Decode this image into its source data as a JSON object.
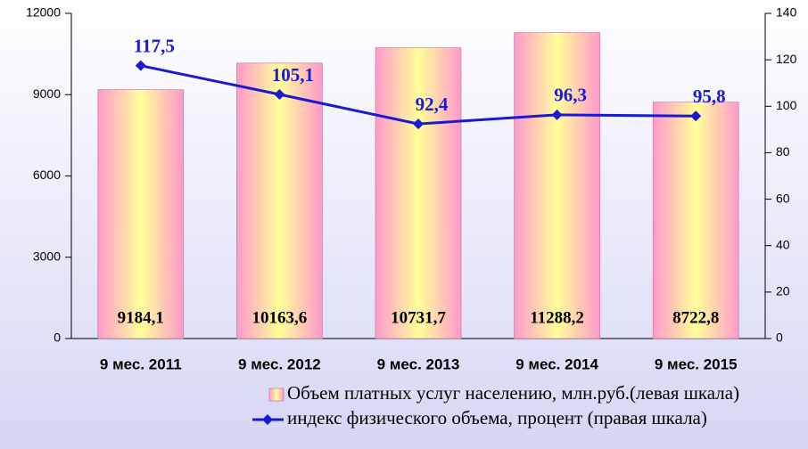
{
  "chart_data": {
    "type": "bar-line",
    "categories": [
      "9 мес. 2011",
      "9 мес. 2012",
      "9 мес. 2013",
      "9 мес. 2014",
      "9 мес. 2015"
    ],
    "series": [
      {
        "name": "Объем платных услуг населению, млн.руб.(левая шкала)",
        "type": "bar",
        "axis": "y",
        "color": "#ff99cc",
        "values": [
          9184.1,
          10163.6,
          10731.7,
          11288.2,
          8722.8
        ],
        "value_labels": [
          "9184,1",
          "10163,6",
          "10731,7",
          "11288,2",
          "8722,8"
        ]
      },
      {
        "name": "индекс физического объема, процент (правая шкала)",
        "type": "line",
        "axis": "y2",
        "color": "#1a1ad6",
        "values": [
          117.5,
          105.1,
          92.4,
          96.3,
          95.8
        ],
        "value_labels": [
          "117,5",
          "105,1",
          "92,4",
          "96,3",
          "95,8"
        ]
      }
    ],
    "ylim": [
      0,
      12000
    ],
    "yticks": [
      0,
      3000,
      6000,
      9000,
      12000
    ],
    "y2lim": [
      0,
      140
    ],
    "y2ticks": [
      0,
      20,
      40,
      60,
      80,
      100,
      120,
      140
    ]
  }
}
